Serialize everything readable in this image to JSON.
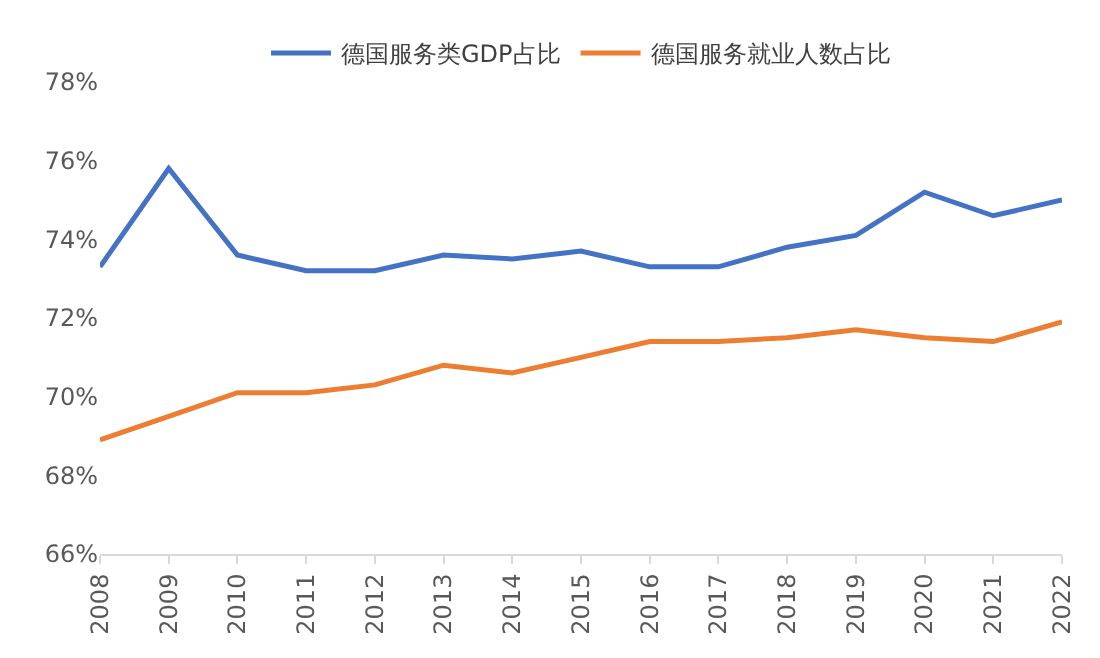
{
  "chart_data": {
    "type": "line",
    "categories": [
      "2008",
      "2009",
      "2010",
      "2011",
      "2012",
      "2013",
      "2014",
      "2015",
      "2016",
      "2017",
      "2018",
      "2019",
      "2020",
      "2021",
      "2022"
    ],
    "series": [
      {
        "name": "德国服务类GDP占比",
        "color": "#4472c4",
        "values": [
          73.3,
          75.8,
          73.6,
          73.2,
          73.2,
          73.6,
          73.5,
          73.7,
          73.3,
          73.3,
          73.8,
          74.1,
          75.2,
          74.6,
          75.0
        ]
      },
      {
        "name": "德国服务就业人数占比",
        "color": "#ed7d31",
        "values": [
          68.9,
          69.5,
          70.1,
          70.1,
          70.3,
          70.8,
          70.6,
          71.0,
          71.4,
          71.4,
          71.5,
          71.7,
          71.5,
          71.4,
          71.9
        ]
      }
    ],
    "ylim": [
      66,
      78
    ],
    "yticks": [
      {
        "value": 66,
        "label": "66%"
      },
      {
        "value": 68,
        "label": "68%"
      },
      {
        "value": 70,
        "label": "70%"
      },
      {
        "value": 72,
        "label": "72%"
      },
      {
        "value": 74,
        "label": "74%"
      },
      {
        "value": 76,
        "label": "76%"
      },
      {
        "value": 78,
        "label": "78%"
      }
    ],
    "grid": false,
    "legend": "top",
    "marker": "none",
    "line_style": "solid"
  }
}
